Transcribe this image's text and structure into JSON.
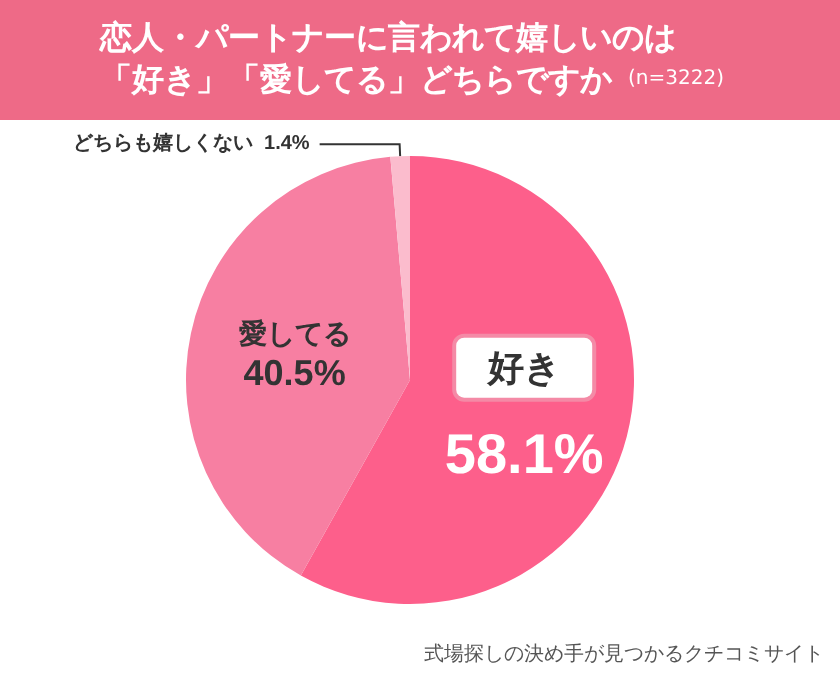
{
  "chart_data": {
    "type": "pie",
    "title": "恋人・パートナーに言われて嬉しいのは「好き」「愛してる」どちらですか",
    "subtitle": "(n=3222)",
    "categories": [
      "好き",
      "愛してる",
      "どちらも嬉しくない"
    ],
    "values": [
      58.1,
      40.5,
      1.4
    ],
    "value_labels": [
      "58.1%",
      "40.5%",
      "1.4%"
    ],
    "colors": [
      "#fd5f8b",
      "#f77fa2",
      "#fbbccd"
    ],
    "legend": false,
    "annotations": [
      "式場探しの決め手が見つかるクチコミサイト"
    ]
  }
}
